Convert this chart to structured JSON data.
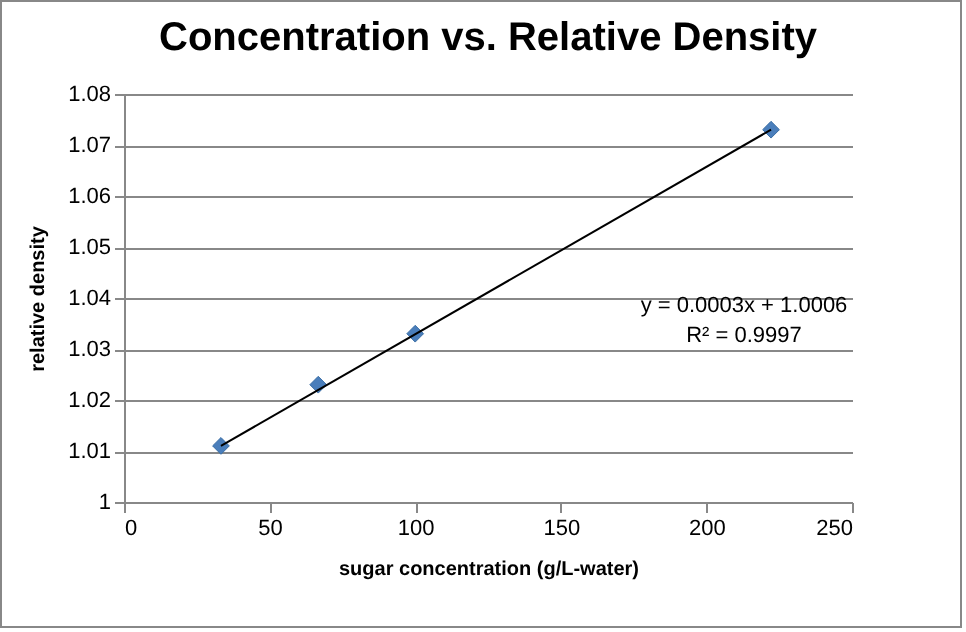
{
  "chart_data": {
    "type": "scatter",
    "title": "Concentration vs. Relative Density",
    "xlabel": "sugar concentration  (g/L-water)",
    "ylabel": "relative density",
    "series": [
      {
        "color": "#4a7ebb",
        "x": [
          33.3,
          66.7,
          100,
          222.2
        ],
        "values": [
          1.011,
          1.023,
          1.033,
          1.073
        ],
        "marker": "diamond"
      },
      {
        "type": "line",
        "color": "#000000",
        "x": [
          33.3,
          222.2
        ],
        "values": [
          1.011,
          1.073
        ],
        "marker": "none"
      }
    ],
    "annotations": [
      "y = 0.0003x + 1.0006",
      "R² = 0.9997"
    ],
    "xlim": [
      0,
      250
    ],
    "xticks": [
      0,
      50,
      100,
      150,
      200,
      250
    ],
    "ylim": [
      1,
      1.08
    ],
    "yticks": [
      1,
      1.01,
      1.02,
      1.03,
      1.04,
      1.05,
      1.06,
      1.07,
      1.08
    ],
    "grid": "y"
  }
}
